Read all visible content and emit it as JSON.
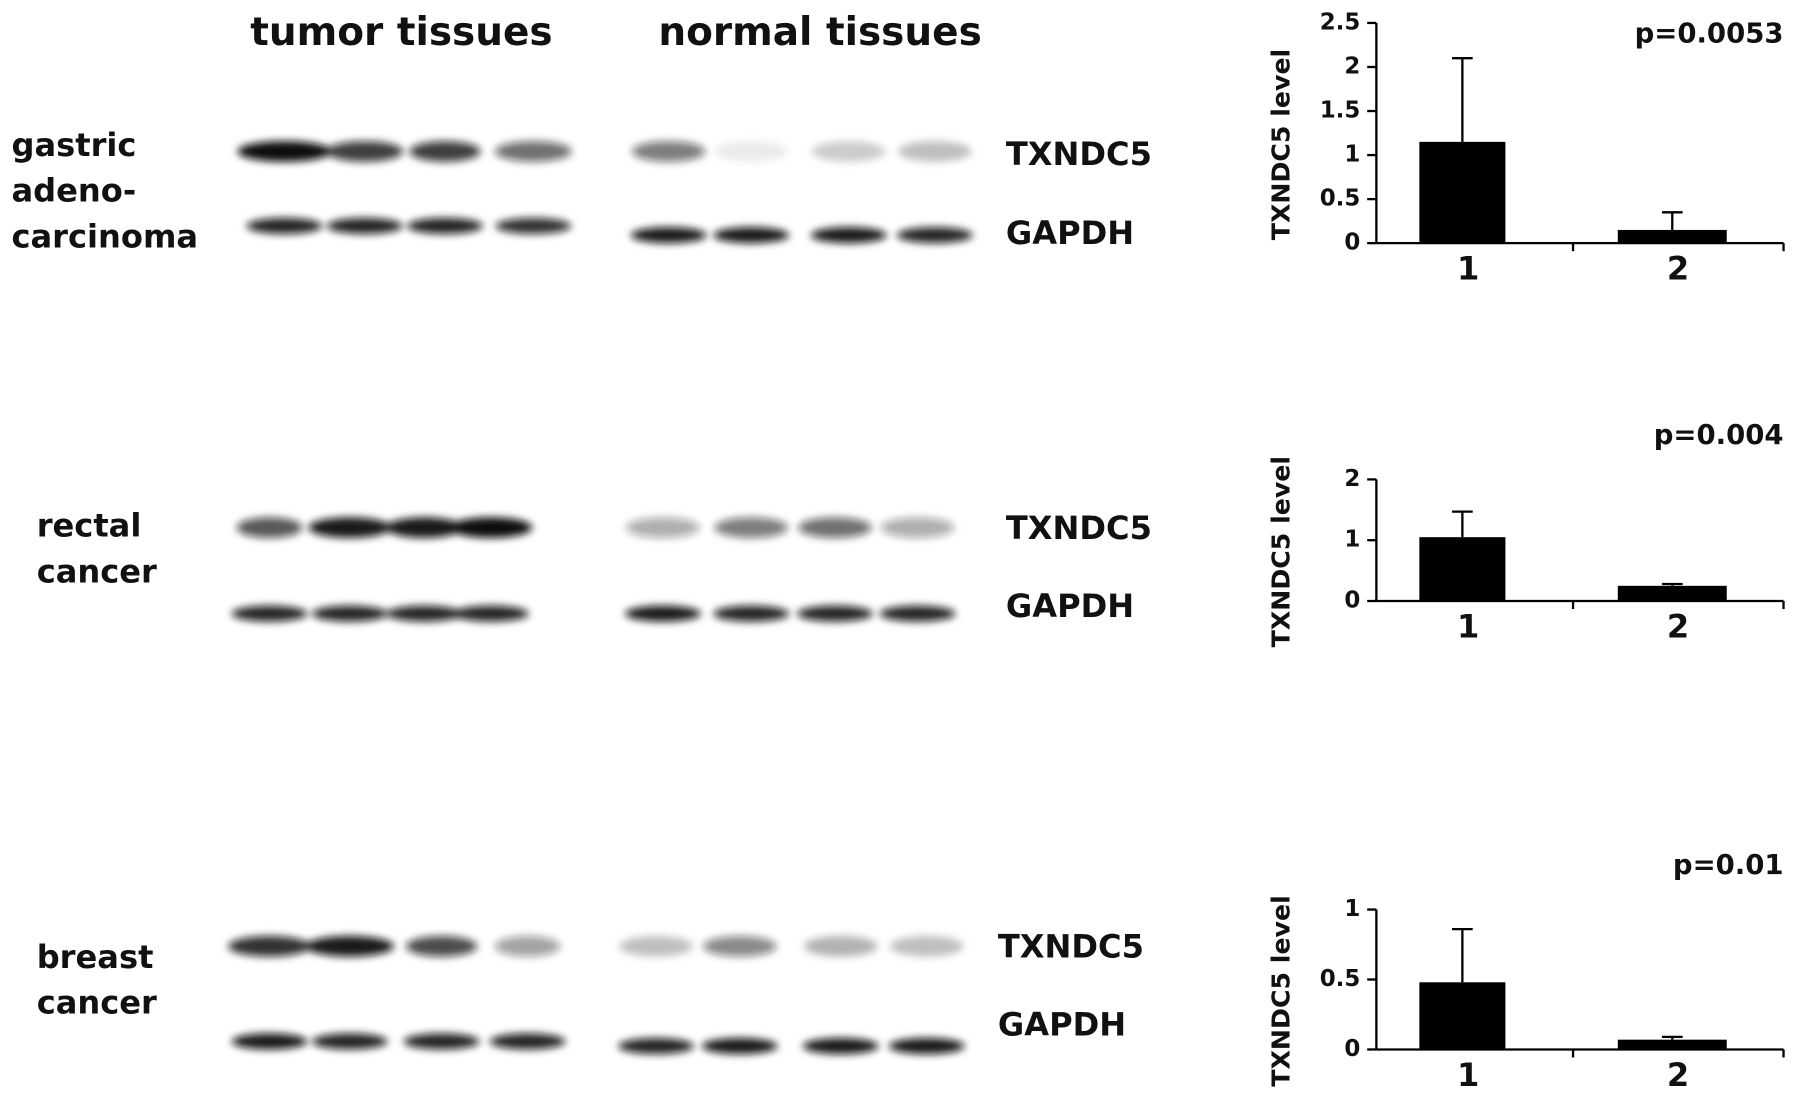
{
  "headers": [
    "tumor tissues",
    "normal tissues"
  ],
  "rows": [
    {
      "label_lines": [
        "gastric",
        "adeno-",
        "carcinoma"
      ],
      "bands": [
        "TXNDC5",
        "GAPDH"
      ]
    },
    {
      "label_lines": [
        "rectal",
        "cancer"
      ],
      "bands": [
        "TXNDC5",
        "GAPDH"
      ]
    },
    {
      "label_lines": [
        "breast",
        "cancer"
      ],
      "bands": [
        "TXNDC5",
        "GAPDH"
      ]
    }
  ],
  "chart_data": [
    {
      "type": "bar",
      "ylabel": "TXNDC5 level",
      "annotation": "p=0.0053",
      "categories": [
        "1",
        "2"
      ],
      "values": [
        1.15,
        0.15
      ],
      "errors": [
        0.95,
        0.2
      ],
      "color": "#000000",
      "ylim": [
        0,
        2.5
      ],
      "yticks": [
        0,
        0.5,
        1,
        1.5,
        2,
        2.5
      ]
    },
    {
      "type": "bar",
      "ylabel": "TXNDC5 level",
      "annotation": "p=0.004",
      "categories": [
        "1",
        "2"
      ],
      "values": [
        1.05,
        0.25
      ],
      "errors": [
        0.42,
        0.03
      ],
      "color": "#000000",
      "ylim": [
        0,
        2
      ],
      "yticks": [
        0,
        1,
        2
      ]
    },
    {
      "type": "bar",
      "ylabel": "TXNDC5 level",
      "annotation": "p=0.01",
      "categories": [
        "1",
        "2"
      ],
      "values": [
        0.48,
        0.07
      ],
      "errors": [
        0.38,
        0.02
      ],
      "color": "#000000",
      "ylim": [
        0,
        1
      ],
      "yticks": [
        0,
        0.5,
        1
      ]
    }
  ]
}
